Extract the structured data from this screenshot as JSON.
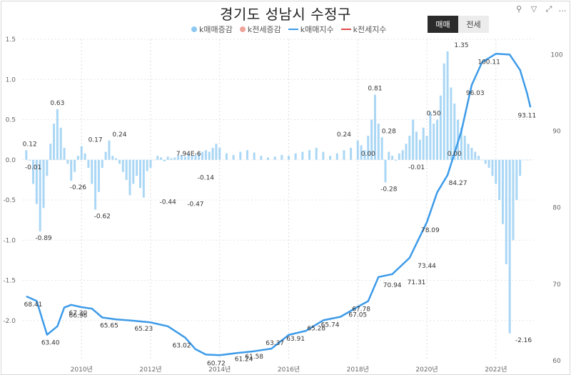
{
  "header": {
    "title": "경기도 성남시 수정구",
    "toggle_active": "매매",
    "toggle_inactive": "전세"
  },
  "toolbar": {
    "pin_icon": "pin-icon",
    "filter_icon": "filter-icon",
    "expand_icon": "expand-icon",
    "more_icon": "more-icon",
    "pin_glyph": "⚲",
    "filter_glyph": "▽",
    "expand_glyph": "⤢",
    "more_glyph": "…"
  },
  "legend": [
    {
      "label": "k매매증감",
      "color": "#8ec9f2",
      "kind": "dot"
    },
    {
      "label": "k전세증감",
      "color": "#f0a39a",
      "kind": "dot"
    },
    {
      "label": "k매매지수",
      "color": "#3d9be9",
      "kind": "line"
    },
    {
      "label": "k전세지수",
      "color": "#e04b4b",
      "kind": "line"
    }
  ],
  "chart_data": {
    "type": "bar+line",
    "title": "경기도 성남시 수정구",
    "x_ticks": [
      "2010년",
      "2012년",
      "2014년",
      "2016년",
      "2018년",
      "2020년",
      "2022년"
    ],
    "x_tick_years": [
      2010,
      2012,
      2014,
      2016,
      2018,
      2020,
      2022
    ],
    "xlim": [
      2008.3,
      2023.1
    ],
    "y_left_ticks": [
      "1.5",
      "1.0",
      "0.5",
      "0.0",
      "-0.5",
      "-1.0",
      "-1.5",
      "-2.0"
    ],
    "y_left_values": [
      1.5,
      1.0,
      0.5,
      0.0,
      -0.5,
      -1.0,
      -1.5,
      -2.0
    ],
    "ylim_left": [
      -2.5,
      1.5
    ],
    "y_right_ticks": [
      "100",
      "90",
      "80",
      "70",
      "60"
    ],
    "y_right_values": [
      100,
      90,
      80,
      70,
      60
    ],
    "ylim_right": [
      60,
      102
    ],
    "grid": true,
    "series": [
      {
        "name": "k매매증감",
        "kind": "bar",
        "color": "#8ec9f2",
        "x": [
          2008.4,
          2008.5,
          2008.6,
          2008.7,
          2008.8,
          2008.9,
          2009.0,
          2009.1,
          2009.2,
          2009.3,
          2009.4,
          2009.5,
          2009.6,
          2009.7,
          2009.8,
          2009.9,
          2010.0,
          2010.1,
          2010.2,
          2010.3,
          2010.4,
          2010.5,
          2010.6,
          2010.7,
          2010.8,
          2010.9,
          2011.0,
          2011.1,
          2011.2,
          2011.3,
          2011.4,
          2011.5,
          2011.6,
          2011.7,
          2011.8,
          2011.9,
          2012.0,
          2012.1,
          2012.2,
          2012.3,
          2012.4,
          2012.5,
          2012.6,
          2012.7,
          2012.8,
          2012.9,
          2013.0,
          2013.1,
          2013.2,
          2013.3,
          2013.4,
          2013.5,
          2013.6,
          2013.7,
          2013.8,
          2013.9,
          2014.0,
          2014.2,
          2014.4,
          2014.6,
          2014.8,
          2015.0,
          2015.2,
          2015.4,
          2015.6,
          2015.8,
          2016.0,
          2016.2,
          2016.4,
          2016.6,
          2016.8,
          2017.0,
          2017.2,
          2017.4,
          2017.6,
          2017.8,
          2018.0,
          2018.1,
          2018.2,
          2018.3,
          2018.4,
          2018.5,
          2018.6,
          2018.7,
          2018.8,
          2018.9,
          2019.0,
          2019.1,
          2019.2,
          2019.3,
          2019.4,
          2019.5,
          2019.6,
          2019.7,
          2019.8,
          2019.9,
          2020.0,
          2020.1,
          2020.2,
          2020.3,
          2020.4,
          2020.5,
          2020.6,
          2020.7,
          2020.8,
          2020.9,
          2021.0,
          2021.1,
          2021.2,
          2021.3,
          2021.4,
          2021.5,
          2021.6,
          2021.7,
          2021.8,
          2021.9,
          2022.0,
          2022.1,
          2022.2,
          2022.3,
          2022.4,
          2022.5,
          2022.6,
          2022.7,
          2022.8,
          2022.9,
          2023.0
        ],
        "values": [
          0.12,
          -0.01,
          -0.3,
          -0.55,
          -0.89,
          -0.6,
          -0.2,
          0.2,
          0.45,
          0.63,
          0.4,
          0.15,
          -0.05,
          -0.26,
          -0.15,
          0.05,
          0.17,
          0.08,
          -0.1,
          -0.3,
          -0.62,
          -0.4,
          -0.1,
          0.1,
          0.24,
          0.05,
          0.02,
          -0.05,
          -0.15,
          -0.25,
          -0.44,
          -0.3,
          -0.2,
          -0.35,
          -0.47,
          -0.14,
          -0.1,
          0.0,
          0.05,
          0.03,
          -0.02,
          0.04,
          0.02,
          0.03,
          0.05,
          0.06,
          0.04,
          0.07,
          0.05,
          0.06,
          0.08,
          0.1,
          0.12,
          0.1,
          0.15,
          0.2,
          0.15,
          0.08,
          0.06,
          0.1,
          0.12,
          0.09,
          0.05,
          0.03,
          0.04,
          0.06,
          0.05,
          0.08,
          0.1,
          0.12,
          0.15,
          0.1,
          0.05,
          0.08,
          0.12,
          0.15,
          0.24,
          0.18,
          0.12,
          0.3,
          0.5,
          0.81,
          0.45,
          0.28,
          -0.28,
          0.1,
          0.05,
          -0.01,
          0.08,
          0.12,
          0.2,
          0.3,
          0.5,
          0.35,
          0.25,
          0.4,
          0.3,
          0.6,
          0.45,
          0.5,
          0.8,
          1.2,
          1.35,
          0.9,
          0.7,
          0.5,
          0.4,
          0.3,
          0.2,
          0.15,
          0.1,
          0.05,
          0.0,
          -0.05,
          -0.1,
          -0.2,
          -0.3,
          -0.5,
          -0.8,
          -1.3,
          -2.16,
          -1.0,
          -0.5,
          -0.2,
          0.0,
          0.0,
          0.0
        ]
      },
      {
        "name": "k매매지수",
        "kind": "line",
        "color": "#3d9be9",
        "axis": "right",
        "x": [
          2008.4,
          2008.7,
          2009.0,
          2009.3,
          2009.5,
          2009.7,
          2010.0,
          2010.3,
          2010.6,
          2011.0,
          2011.5,
          2012.0,
          2012.5,
          2013.0,
          2013.3,
          2013.6,
          2014.0,
          2014.5,
          2015.0,
          2015.5,
          2016.0,
          2016.5,
          2017.0,
          2017.5,
          2018.0,
          2018.3,
          2018.6,
          2019.0,
          2019.5,
          2020.0,
          2020.3,
          2020.6,
          2021.0,
          2021.3,
          2021.6,
          2022.0,
          2022.4,
          2022.7,
          2022.9,
          2023.0
        ],
        "values": [
          68.41,
          67.8,
          63.4,
          64.5,
          66.96,
          67.3,
          67.0,
          66.8,
          65.65,
          65.4,
          65.23,
          65.0,
          64.5,
          63.02,
          61.5,
          60.8,
          60.72,
          61.0,
          61.24,
          61.58,
          63.37,
          63.91,
          65.28,
          65.74,
          67.05,
          67.78,
          70.94,
          71.31,
          73.44,
          78.09,
          82.0,
          84.27,
          90.0,
          96.03,
          99.0,
          100.11,
          100.0,
          98.0,
          95.0,
          93.11
        ]
      }
    ],
    "annotations": [
      {
        "text": "0.12",
        "x": 2008.5,
        "y": 0.12,
        "axis": "left"
      },
      {
        "text": "-0.01",
        "x": 2008.6,
        "y": -0.01,
        "axis": "left"
      },
      {
        "text": "0.63",
        "x": 2009.3,
        "y": 0.63,
        "axis": "left"
      },
      {
        "text": "-0.89",
        "x": 2008.9,
        "y": -0.89,
        "axis": "left"
      },
      {
        "text": "-0.26",
        "x": 2009.9,
        "y": -0.26,
        "axis": "left"
      },
      {
        "text": "0.17",
        "x": 2010.4,
        "y": 0.17,
        "axis": "left"
      },
      {
        "text": "-0.62",
        "x": 2010.6,
        "y": -0.62,
        "axis": "left"
      },
      {
        "text": "0.24",
        "x": 2011.1,
        "y": 0.24,
        "axis": "left"
      },
      {
        "text": "7.94E-6",
        "x": 2013.1,
        "y": 0.0,
        "axis": "left"
      },
      {
        "text": "-0.44",
        "x": 2012.5,
        "y": -0.44,
        "axis": "left"
      },
      {
        "text": "-0.14",
        "x": 2013.6,
        "y": -0.14,
        "axis": "left"
      },
      {
        "text": "-0.47",
        "x": 2013.3,
        "y": -0.47,
        "axis": "left"
      },
      {
        "text": "0.24",
        "x": 2017.6,
        "y": 0.24,
        "axis": "left"
      },
      {
        "text": "0.81",
        "x": 2018.5,
        "y": 0.81,
        "axis": "left"
      },
      {
        "text": "0.28",
        "x": 2018.9,
        "y": 0.28,
        "axis": "left"
      },
      {
        "text": "0.00",
        "x": 2018.3,
        "y": 0.0,
        "axis": "left"
      },
      {
        "text": "-0.28",
        "x": 2018.9,
        "y": -0.28,
        "axis": "left"
      },
      {
        "text": "-0.01",
        "x": 2019.7,
        "y": -0.01,
        "axis": "left"
      },
      {
        "text": "0.50",
        "x": 2020.2,
        "y": 0.5,
        "axis": "left"
      },
      {
        "text": "0.00",
        "x": 2020.8,
        "y": 0.0,
        "axis": "left"
      },
      {
        "text": "1.35",
        "x": 2021.0,
        "y": 1.35,
        "axis": "left"
      },
      {
        "text": "-2.16",
        "x": 2022.8,
        "y": -2.16,
        "axis": "left"
      },
      {
        "text": "68.41",
        "x": 2008.6,
        "y": 68.41,
        "axis": "right"
      },
      {
        "text": "63.40",
        "x": 2009.1,
        "y": 63.4,
        "axis": "right"
      },
      {
        "text": "67.30",
        "x": 2009.9,
        "y": 67.3,
        "axis": "right"
      },
      {
        "text": "66.96",
        "x": 2009.9,
        "y": 66.96,
        "axis": "right"
      },
      {
        "text": "65.65",
        "x": 2010.8,
        "y": 65.65,
        "axis": "right"
      },
      {
        "text": "65.23",
        "x": 2011.8,
        "y": 65.23,
        "axis": "right"
      },
      {
        "text": "63.02",
        "x": 2012.9,
        "y": 63.02,
        "axis": "right"
      },
      {
        "text": "60.72",
        "x": 2013.9,
        "y": 60.72,
        "axis": "right"
      },
      {
        "text": "61.24",
        "x": 2014.7,
        "y": 61.24,
        "axis": "right"
      },
      {
        "text": "61.58",
        "x": 2015.0,
        "y": 61.58,
        "axis": "right"
      },
      {
        "text": "63.37",
        "x": 2015.6,
        "y": 63.37,
        "axis": "right"
      },
      {
        "text": "63.91",
        "x": 2016.2,
        "y": 63.91,
        "axis": "right"
      },
      {
        "text": "65.28",
        "x": 2016.8,
        "y": 65.28,
        "axis": "right"
      },
      {
        "text": "65.74",
        "x": 2017.2,
        "y": 65.74,
        "axis": "right"
      },
      {
        "text": "67.05",
        "x": 2018.0,
        "y": 67.05,
        "axis": "right"
      },
      {
        "text": "67.78",
        "x": 2018.1,
        "y": 67.78,
        "axis": "right"
      },
      {
        "text": "70.94",
        "x": 2019.0,
        "y": 70.94,
        "axis": "right"
      },
      {
        "text": "71.31",
        "x": 2019.7,
        "y": 71.31,
        "axis": "right"
      },
      {
        "text": "73.44",
        "x": 2020.0,
        "y": 73.44,
        "axis": "right"
      },
      {
        "text": "78.09",
        "x": 2020.1,
        "y": 78.09,
        "axis": "right"
      },
      {
        "text": "84.27",
        "x": 2020.9,
        "y": 84.27,
        "axis": "right"
      },
      {
        "text": "96.03",
        "x": 2021.4,
        "y": 96.03,
        "axis": "right"
      },
      {
        "text": "100.11",
        "x": 2021.8,
        "y": 100.11,
        "axis": "right"
      },
      {
        "text": "93.11",
        "x": 2022.9,
        "y": 93.11,
        "axis": "right"
      }
    ]
  }
}
